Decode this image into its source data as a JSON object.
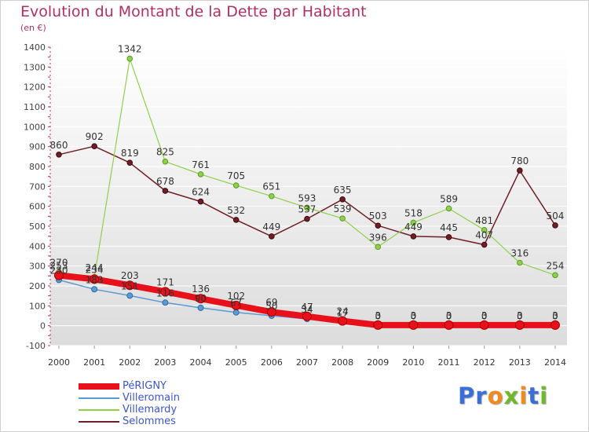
{
  "title": "Evolution du Montant de la Dette par Habitant",
  "subtitle": "(en €)",
  "logo": {
    "letters": [
      "P",
      "r",
      "o",
      "x",
      "i",
      "t",
      "i"
    ],
    "colors": [
      "#3a6fd8",
      "#3a6fd8",
      "#f08a1c",
      "#6fb82a",
      "#f08a1c",
      "#3a6fd8",
      "#6fb82a"
    ]
  },
  "chart_data": {
    "type": "line",
    "title": "Evolution du Montant de la Dette par Habitant",
    "ylabel": "(en €)",
    "x": [
      "2000",
      "2001",
      "2002",
      "2003",
      "2004",
      "2005",
      "2006",
      "2007",
      "2008",
      "2009",
      "2010",
      "2011",
      "2012",
      "2013",
      "2014"
    ],
    "ylim": [
      -100,
      1400
    ],
    "yticks": [
      -100,
      0,
      100,
      200,
      300,
      400,
      500,
      600,
      700,
      800,
      900,
      1000,
      1100,
      1200,
      1300,
      1400
    ],
    "grid": true,
    "legend_position": "bottom-left",
    "series": [
      {
        "name": "PéRIGNY",
        "color": "#e8101a",
        "values": [
          253,
          234,
          203,
          171,
          136,
          102,
          69,
          47,
          24,
          3,
          3,
          3,
          3,
          3,
          3
        ],
        "labels": [
          "253",
          "234",
          "203",
          "171",
          "136",
          "102",
          "69",
          "47",
          "24",
          "3",
          "3",
          "3",
          "3",
          "3",
          "3"
        ]
      },
      {
        "name": "Villeromain",
        "color": "#5a9bd5",
        "values": [
          230,
          183,
          151,
          116,
          90,
          67,
          50,
          34,
          17,
          0,
          0,
          0,
          0,
          0,
          0
        ],
        "labels": [
          "230",
          "183",
          "151",
          "116",
          "90",
          "67",
          "50",
          "34",
          "17",
          "0",
          "0",
          "0",
          "0",
          "0",
          "0"
        ]
      },
      {
        "name": "Villemardy",
        "color": "#8ed04a",
        "values": [
          270,
          244,
          1342,
          825,
          761,
          705,
          651,
          593,
          539,
          396,
          518,
          589,
          481,
          316,
          254
        ],
        "labels": [
          "270",
          "244",
          "1342",
          "825",
          "761",
          "705",
          "651",
          "593",
          "539",
          "396",
          "518",
          "589",
          "481",
          "316",
          "254"
        ]
      },
      {
        "name": "Selommes",
        "color": "#6e1e24",
        "values": [
          860,
          902,
          819,
          678,
          624,
          532,
          449,
          537,
          635,
          503,
          449,
          445,
          407,
          780,
          504
        ],
        "labels": [
          "860",
          "902",
          "819",
          "678",
          "624",
          "532",
          "449",
          "537",
          "635",
          "503",
          "449",
          "445",
          "407",
          "780",
          "504"
        ]
      }
    ]
  }
}
